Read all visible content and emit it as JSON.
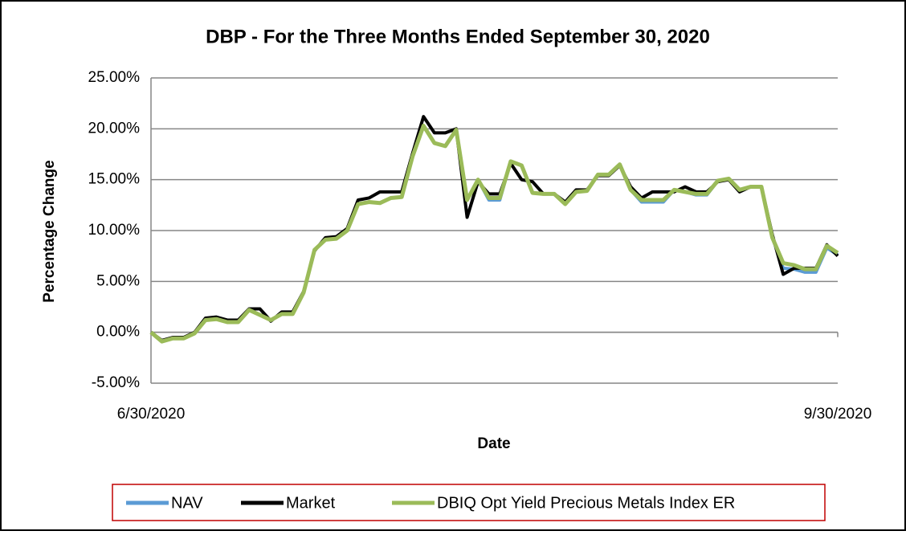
{
  "chart_data": {
    "type": "line",
    "title": "DBP - For the Three Months Ended September 30, 2020",
    "x_label": "Date",
    "y_label": "Percentage Change",
    "categories": [
      "6/30/2020",
      null,
      null,
      null,
      null,
      null,
      null,
      null,
      null,
      null,
      null,
      null,
      null,
      null,
      null,
      null,
      null,
      null,
      null,
      null,
      null,
      null,
      null,
      null,
      null,
      null,
      null,
      null,
      null,
      null,
      null,
      null,
      null,
      null,
      null,
      null,
      null,
      null,
      null,
      null,
      null,
      null,
      null,
      null,
      null,
      null,
      null,
      null,
      null,
      null,
      null,
      null,
      null,
      null,
      null,
      null,
      null,
      null,
      null,
      null,
      null,
      null,
      null,
      "9/30/2020"
    ],
    "ylim": [
      -5,
      25
    ],
    "yticks": [
      {
        "value": -5,
        "label": "-5.00%"
      },
      {
        "value": 0,
        "label": "0.00%"
      },
      {
        "value": 5,
        "label": "5.00%"
      },
      {
        "value": 10,
        "label": "10.00%"
      },
      {
        "value": 15,
        "label": "15.00%"
      },
      {
        "value": 20,
        "label": "20.00%"
      },
      {
        "value": 25,
        "label": "25.00%"
      }
    ],
    "grid": true,
    "legend": "bottom",
    "series": [
      {
        "name": "NAV",
        "color": "#5b9bd5",
        "values": [
          0,
          -0.9,
          -0.6,
          -0.6,
          -0.1,
          1.2,
          1.3,
          1.0,
          1.0,
          2.2,
          1.7,
          1.2,
          1.8,
          1.8,
          3.9,
          8.1,
          9.1,
          9.2,
          10.0,
          12.6,
          12.8,
          12.7,
          13.2,
          13.3,
          17.3,
          20.3,
          18.6,
          18.3,
          19.9,
          13.0,
          15.0,
          13.0,
          13.0,
          16.8,
          16.4,
          13.7,
          13.6,
          13.6,
          12.6,
          13.8,
          13.9,
          15.5,
          15.5,
          16.5,
          14.0,
          12.8,
          12.8,
          12.8,
          14.0,
          13.8,
          13.5,
          13.5,
          14.9,
          15.1,
          14.0,
          14.3,
          14.3,
          9.3,
          6.3,
          6.2,
          5.9,
          5.9,
          8.3,
          7.6
        ]
      },
      {
        "name": "Market",
        "color": "#000000",
        "values": [
          0,
          -0.8,
          -0.5,
          -0.5,
          0.0,
          1.4,
          1.5,
          1.2,
          1.2,
          2.3,
          2.3,
          1.1,
          2.0,
          2.0,
          4.0,
          8.0,
          9.3,
          9.4,
          10.2,
          13.0,
          13.2,
          13.8,
          13.8,
          13.8,
          17.6,
          21.2,
          19.6,
          19.6,
          20.0,
          11.3,
          14.8,
          13.6,
          13.6,
          16.6,
          15.0,
          14.8,
          13.6,
          13.6,
          12.8,
          14.0,
          14.0,
          15.4,
          15.4,
          16.4,
          14.3,
          13.2,
          13.8,
          13.8,
          13.8,
          14.3,
          13.8,
          13.8,
          14.8,
          15.0,
          13.8,
          14.3,
          14.3,
          9.6,
          5.7,
          6.3,
          6.3,
          6.3,
          8.6,
          7.5
        ]
      },
      {
        "name": "DBIQ Opt Yield Precious Metals Index ER",
        "color": "#9bbb59",
        "values": [
          0,
          -0.9,
          -0.6,
          -0.6,
          -0.1,
          1.2,
          1.3,
          1.0,
          1.0,
          2.2,
          1.7,
          1.2,
          1.8,
          1.8,
          3.9,
          8.1,
          9.1,
          9.2,
          10.0,
          12.6,
          12.8,
          12.7,
          13.2,
          13.3,
          17.3,
          20.3,
          18.6,
          18.3,
          19.9,
          13.0,
          15.0,
          13.2,
          13.2,
          16.8,
          16.4,
          13.7,
          13.6,
          13.6,
          12.6,
          13.8,
          13.9,
          15.5,
          15.5,
          16.5,
          14.0,
          13.0,
          13.0,
          13.0,
          14.0,
          13.8,
          13.6,
          13.6,
          14.9,
          15.1,
          14.0,
          14.3,
          14.3,
          9.3,
          6.8,
          6.6,
          6.2,
          6.2,
          8.5,
          7.8
        ]
      }
    ]
  }
}
